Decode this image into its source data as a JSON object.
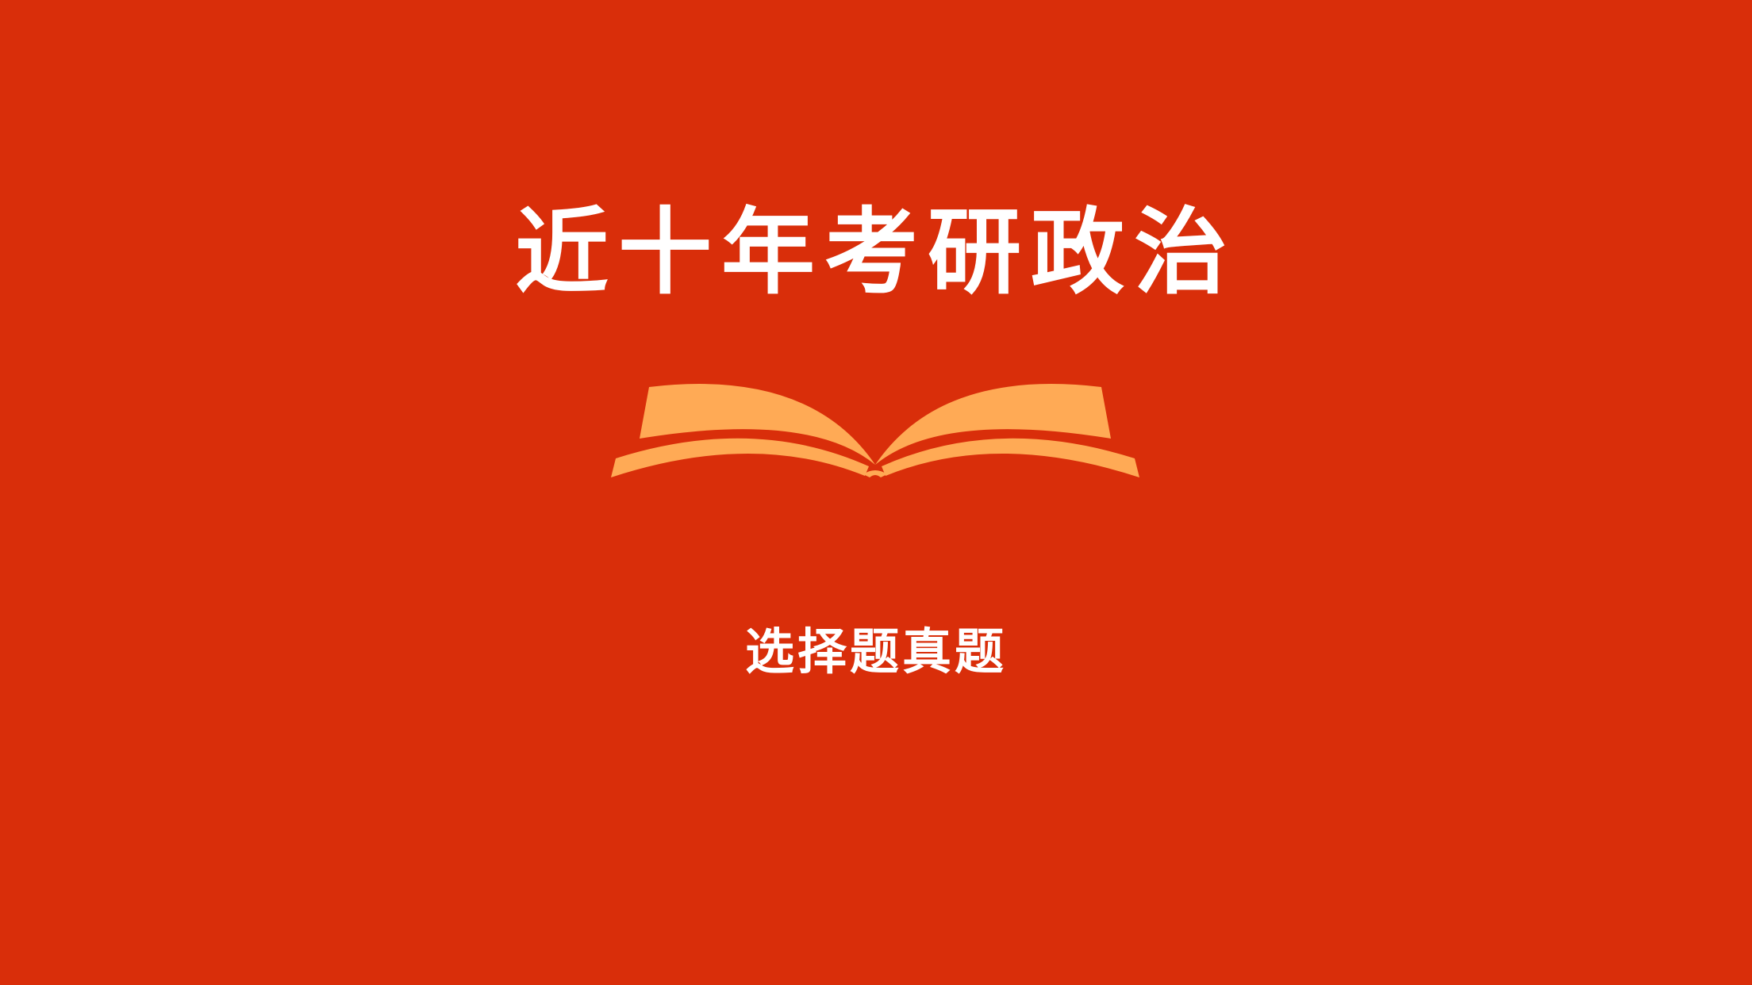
{
  "slide": {
    "title": "近十年考研政治",
    "subtitle": "选择题真题",
    "book_icon": "open-book-icon"
  },
  "colors": {
    "background": "#D92E0A",
    "text": "#FFFFFF",
    "book": "#FFAA55"
  }
}
